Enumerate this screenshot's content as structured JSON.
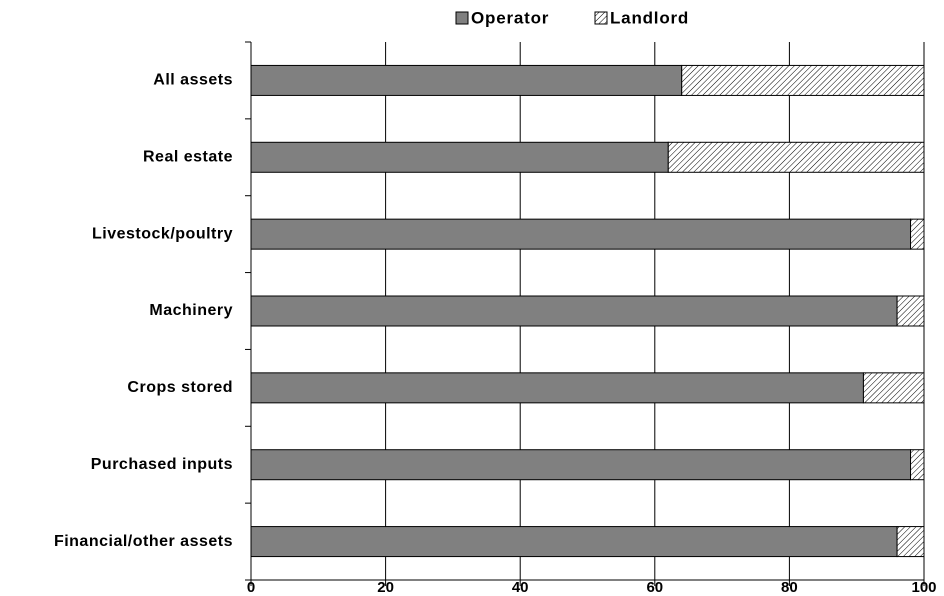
{
  "chart_data": {
    "type": "stacked_barh",
    "categories": [
      "All assets",
      "Real estate",
      "Livestock/poultry",
      "Machinery",
      "Crops stored",
      "Purchased inputs",
      "Financial/other assets"
    ],
    "series": [
      {
        "name": "Operator",
        "color": "#808080",
        "values": [
          64,
          62,
          98,
          96,
          91,
          98,
          96
        ]
      },
      {
        "name": "Landlord",
        "color": "hatch",
        "values": [
          36,
          38,
          2,
          4,
          9,
          2,
          4
        ]
      }
    ],
    "xlim": [
      0,
      100
    ],
    "xticks": [
      0,
      20,
      40,
      60,
      80,
      100
    ],
    "grid": true,
    "legend": "top"
  }
}
